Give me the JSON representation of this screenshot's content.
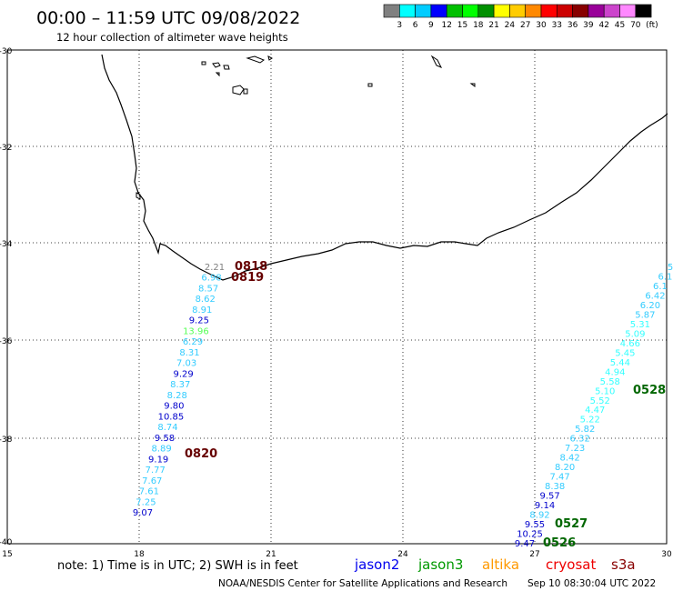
{
  "header": {
    "title": "00:00 – 11:59 UTC 09/08/2022",
    "subtitle": "12 hour collection of altimeter wave heights"
  },
  "colorbar": {
    "colors": [
      "#808080",
      "#00ffff",
      "#00ccff",
      "#0000ff",
      "#00c000",
      "#00ff00",
      "#009000",
      "#ffff00",
      "#ffcc00",
      "#ff8800",
      "#ff0000",
      "#cc0000",
      "#880000",
      "#990099",
      "#cc44cc",
      "#ff88ff",
      "#000000"
    ],
    "labels": [
      "3",
      "6",
      "9",
      "12",
      "15",
      "18",
      "21",
      "24",
      "27",
      "30",
      "33",
      "36",
      "39",
      "42",
      "45",
      "70"
    ],
    "unit": "(ft)"
  },
  "axes": {
    "lat_labels": [
      "-30",
      "-32",
      "-34",
      "-36",
      "-38",
      "-40"
    ],
    "lon_labels": [
      "15",
      "18",
      "21",
      "24",
      "27",
      "30"
    ]
  },
  "track_west": [
    {
      "v": "2.21",
      "c": "#808080"
    },
    {
      "v": "6.98",
      "c": "#33ccff"
    },
    {
      "v": "8.57",
      "c": "#33ccff"
    },
    {
      "v": "8.62",
      "c": "#33ccff"
    },
    {
      "v": "8.91",
      "c": "#33ccff"
    },
    {
      "v": "9.25",
      "c": "#0000cc"
    },
    {
      "v": "13.96",
      "c": "#55ff55"
    },
    {
      "v": "6.29",
      "c": "#33ccff"
    },
    {
      "v": "8.31",
      "c": "#33ccff"
    },
    {
      "v": "7.03",
      "c": "#33ccff"
    },
    {
      "v": "9.29",
      "c": "#0000cc"
    },
    {
      "v": "8.37",
      "c": "#33ccff"
    },
    {
      "v": "8.28",
      "c": "#33ccff"
    },
    {
      "v": "9.80",
      "c": "#0000cc"
    },
    {
      "v": "10.85",
      "c": "#0000cc"
    },
    {
      "v": "8.74",
      "c": "#33ccff"
    },
    {
      "v": "9.58",
      "c": "#0000cc"
    },
    {
      "v": "8.89",
      "c": "#33ccff"
    },
    {
      "v": "9.19",
      "c": "#0000cc"
    },
    {
      "v": "7.77",
      "c": "#33ccff"
    },
    {
      "v": "7.67",
      "c": "#33ccff"
    },
    {
      "v": "7.61",
      "c": "#33ccff"
    },
    {
      "v": "7.25",
      "c": "#33ccff"
    },
    {
      "v": "9.07",
      "c": "#0000cc"
    }
  ],
  "track_east": [
    {
      "v": "5",
      "c": "#33ccff"
    },
    {
      "v": "6.1",
      "c": "#33ccff"
    },
    {
      "v": "6.1",
      "c": "#33ccff"
    },
    {
      "v": "6.42",
      "c": "#33ccff"
    },
    {
      "v": "6.20",
      "c": "#33ccff"
    },
    {
      "v": "5.87",
      "c": "#33ccff"
    },
    {
      "v": "5.31",
      "c": "#33ffff"
    },
    {
      "v": "5.09",
      "c": "#33ffff"
    },
    {
      "v": "4.66",
      "c": "#33ffff"
    },
    {
      "v": "5.45",
      "c": "#33ffff"
    },
    {
      "v": "5.44",
      "c": "#33ffff"
    },
    {
      "v": "4.94",
      "c": "#33ffff"
    },
    {
      "v": "5.58",
      "c": "#33ffff"
    },
    {
      "v": "5.10",
      "c": "#33ffff"
    },
    {
      "v": "5.52",
      "c": "#33ffff"
    },
    {
      "v": "4.47",
      "c": "#33ffff"
    },
    {
      "v": "5.22",
      "c": "#33ffff"
    },
    {
      "v": "5.82",
      "c": "#33ccff"
    },
    {
      "v": "6.32",
      "c": "#33ccff"
    },
    {
      "v": "7.23",
      "c": "#33ccff"
    },
    {
      "v": "8.42",
      "c": "#33ccff"
    },
    {
      "v": "8.20",
      "c": "#33ccff"
    },
    {
      "v": "7.47",
      "c": "#33ccff"
    },
    {
      "v": "8.38",
      "c": "#33ccff"
    },
    {
      "v": "9.57",
      "c": "#0000cc"
    },
    {
      "v": "9.14",
      "c": "#0000cc"
    },
    {
      "v": "8.92",
      "c": "#33ccff"
    },
    {
      "v": "9.55",
      "c": "#0000cc"
    },
    {
      "v": "10.25",
      "c": "#0000cc"
    },
    {
      "v": "9.47",
      "c": "#0000cc"
    }
  ],
  "time_labels": [
    {
      "id": "0818",
      "text": "0818",
      "c": "#660000"
    },
    {
      "id": "0819",
      "text": "0819",
      "c": "#660000"
    },
    {
      "id": "0820",
      "text": "0820",
      "c": "#660000"
    },
    {
      "id": "0528",
      "text": "0528",
      "c": "#006600"
    },
    {
      "id": "0527",
      "text": "0527",
      "c": "#006600"
    },
    {
      "id": "0526",
      "text": "0526",
      "c": "#006600"
    }
  ],
  "footer": {
    "note": "note:  1) Time is in UTC; 2) SWH is in feet",
    "satellites": [
      {
        "name": "jason2",
        "color": "#0000ee"
      },
      {
        "name": "jason3",
        "color": "#009900"
      },
      {
        "name": "altika",
        "color": "#ff9900"
      },
      {
        "name": "cryosat",
        "color": "#ee0000"
      },
      {
        "name": "s3a",
        "color": "#880000"
      }
    ],
    "credit": "NOAA/NESDIS Center for Satellite Applications and Research",
    "timestamp": "Sep 10 08:30:04 UTC 2022"
  }
}
